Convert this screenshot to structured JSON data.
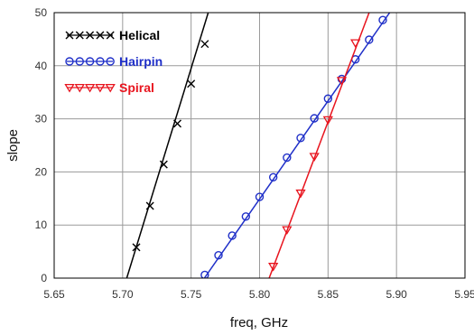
{
  "chart_data": {
    "type": "line",
    "xlabel": "freq, GHz",
    "ylabel": "slope",
    "xlim": [
      5.65,
      5.95
    ],
    "ylim": [
      0,
      50
    ],
    "xticks": [
      "5.65",
      "5.70",
      "5.75",
      "5.80",
      "5.85",
      "5.90",
      "5.95"
    ],
    "yticks": [
      "0",
      "10",
      "20",
      "30",
      "40",
      "50"
    ],
    "grid": true,
    "legend_position": "top-left",
    "series": [
      {
        "name": "Helical",
        "color": "#000000",
        "marker": "x",
        "line_start": [
          5.703,
          0
        ],
        "line_end": [
          5.7625,
          50
        ],
        "points": [
          [
            5.71,
            5.8
          ],
          [
            5.72,
            13.6
          ],
          [
            5.73,
            21.4
          ],
          [
            5.74,
            29.1
          ],
          [
            5.75,
            36.6
          ],
          [
            5.76,
            44.1
          ]
        ]
      },
      {
        "name": "Hairpin",
        "color": "#1f2fc8",
        "marker": "circle",
        "line_start": [
          5.7597,
          0
        ],
        "line_end": [
          5.895,
          50
        ],
        "points": [
          [
            5.76,
            0.6
          ],
          [
            5.77,
            4.3
          ],
          [
            5.78,
            8.0
          ],
          [
            5.79,
            11.6
          ],
          [
            5.8,
            15.3
          ],
          [
            5.81,
            19.0
          ],
          [
            5.82,
            22.7
          ],
          [
            5.83,
            26.4
          ],
          [
            5.84,
            30.1
          ],
          [
            5.85,
            33.8
          ],
          [
            5.86,
            37.5
          ],
          [
            5.87,
            41.2
          ],
          [
            5.88,
            44.9
          ],
          [
            5.89,
            48.6
          ]
        ]
      },
      {
        "name": "Spiral",
        "color": "#e8141e",
        "marker": "triangle-down",
        "line_start": [
          5.807,
          0
        ],
        "line_end": [
          5.88,
          50
        ],
        "points": [
          [
            5.81,
            2.2
          ],
          [
            5.82,
            9.1
          ],
          [
            5.83,
            16.0
          ],
          [
            5.84,
            22.9
          ],
          [
            5.85,
            29.8
          ],
          [
            5.86,
            37.2
          ],
          [
            5.87,
            44.3
          ]
        ]
      }
    ]
  }
}
